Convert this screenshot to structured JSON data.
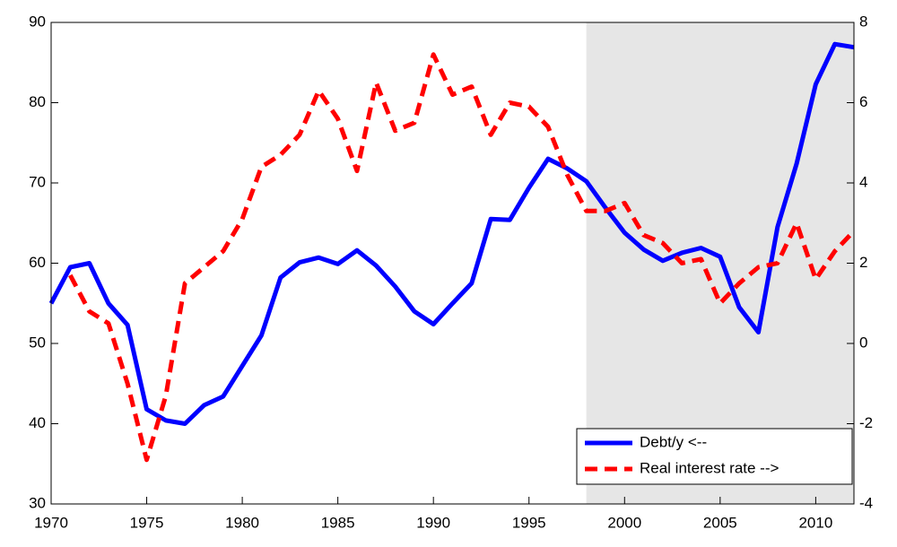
{
  "chart_data": {
    "type": "line",
    "x": [
      1970,
      1971,
      1972,
      1973,
      1974,
      1975,
      1976,
      1977,
      1978,
      1979,
      1980,
      1981,
      1982,
      1983,
      1984,
      1985,
      1986,
      1987,
      1988,
      1989,
      1990,
      1991,
      1992,
      1993,
      1994,
      1995,
      1996,
      1997,
      1998,
      1999,
      2000,
      2001,
      2002,
      2003,
      2004,
      2005,
      2006,
      2007,
      2008,
      2009,
      2010,
      2011,
      2012
    ],
    "xlim": [
      1970,
      2012
    ],
    "xticks": [
      1970,
      1975,
      1980,
      1985,
      1990,
      1995,
      2000,
      2005,
      2010
    ],
    "ylim": [
      30,
      90
    ],
    "yticks": [
      30,
      40,
      50,
      60,
      70,
      80,
      90
    ],
    "y2lim": [
      -4,
      8
    ],
    "y2ticks": [
      -4,
      -2,
      0,
      2,
      4,
      6,
      8
    ],
    "shaded_span": [
      1998,
      2012
    ],
    "shade_color": "#e6e6e6",
    "legend": "lower right",
    "series": [
      {
        "name": "Debt/y <--",
        "color": "#0000ff",
        "dash": false,
        "values": [
          55,
          59.5,
          60,
          55,
          52.3,
          41.8,
          40.4,
          40,
          42.3,
          43.4,
          47.2,
          51,
          58.2,
          60.1,
          60.7,
          59.9,
          61.6,
          59.7,
          57.1,
          54,
          52.4,
          55,
          57.5,
          65.5,
          65.4,
          69.4,
          73,
          71.8,
          70.2,
          66.9,
          63.8,
          61.7,
          60.3,
          61.3,
          61.9,
          60.8,
          54.5,
          51.4,
          64.5,
          72.4,
          82.3,
          87.3,
          86.9
        ]
      },
      {
        "name": "Real interest rate -->",
        "color": "#ff0000",
        "dash": true,
        "axis": "y2",
        "values": [
          null,
          1.7,
          0.8,
          0.5,
          -1,
          -2.9,
          -1.3,
          1.5,
          1.9,
          2.3,
          3.1,
          4.4,
          4.7,
          5.2,
          6.3,
          5.6,
          4.3,
          6.5,
          5.3,
          5.5,
          7.2,
          6.2,
          6.4,
          5.2,
          6,
          5.9,
          5.4,
          4.2,
          3.3,
          3.3,
          3.5,
          2.7,
          2.5,
          2,
          2.1,
          1,
          1.5,
          1.9,
          2,
          3,
          1.6,
          2.3,
          2.8
        ]
      }
    ]
  }
}
